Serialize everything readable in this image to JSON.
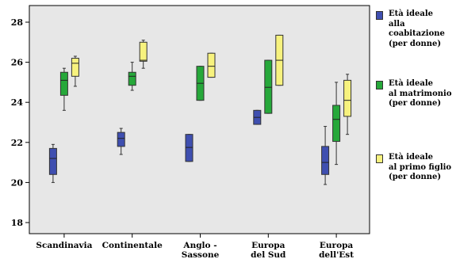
{
  "chart_data": {
    "type": "box",
    "y_ticks": [
      18,
      20,
      22,
      24,
      26,
      28
    ],
    "ylim": [
      17.2,
      28.8
    ],
    "categories": [
      "Scandinavia",
      "Continentale",
      "Anglo -\nSassone",
      "Europa\ndel Sud",
      "Europa\ndell'Est"
    ],
    "grid": false,
    "legend_position": "right",
    "series": [
      {
        "name": "Età ideale\nalla coabitazione\n(per donne)",
        "color": "#3f4fb0",
        "boxes": [
          {
            "min": 20.0,
            "q1": 20.4,
            "median": 21.2,
            "q3": 21.7,
            "max": 21.9
          },
          {
            "min": 21.4,
            "q1": 21.8,
            "median": 22.2,
            "q3": 22.5,
            "max": 22.7
          },
          {
            "min": 21.05,
            "q1": 21.05,
            "median": 21.75,
            "q3": 22.4,
            "max": 22.4
          },
          {
            "min": 22.9,
            "q1": 22.9,
            "median": 23.25,
            "q3": 23.6,
            "max": 23.6
          },
          {
            "min": 19.9,
            "q1": 20.4,
            "median": 21.0,
            "q3": 21.8,
            "max": 22.8
          }
        ]
      },
      {
        "name": "Età ideale\nal matrimonio\n(per donne)",
        "color": "#26a83a",
        "boxes": [
          {
            "min": 23.6,
            "q1": 24.35,
            "median": 25.1,
            "q3": 25.5,
            "max": 25.7
          },
          {
            "min": 24.6,
            "q1": 24.85,
            "median": 25.3,
            "q3": 25.5,
            "max": 26.0
          },
          {
            "min": 24.1,
            "q1": 24.1,
            "median": 24.95,
            "q3": 25.8,
            "max": 25.8
          },
          {
            "min": 23.45,
            "q1": 23.45,
            "median": 24.75,
            "q3": 26.1,
            "max": 26.1
          },
          {
            "min": 20.9,
            "q1": 22.05,
            "median": 23.15,
            "q3": 23.85,
            "max": 25.0
          }
        ]
      },
      {
        "name": "Età ideale\nal primo figlio\n(per donne)",
        "color": "#f7f27e",
        "boxes": [
          {
            "min": 24.8,
            "q1": 25.3,
            "median": 25.95,
            "q3": 26.2,
            "max": 26.3
          },
          {
            "min": 25.7,
            "q1": 26.05,
            "median": 26.1,
            "q3": 27.0,
            "max": 27.1
          },
          {
            "min": 25.25,
            "q1": 25.25,
            "median": 25.8,
            "q3": 26.45,
            "max": 26.45
          },
          {
            "min": 24.85,
            "q1": 24.85,
            "median": 26.1,
            "q3": 27.35,
            "max": 27.35
          },
          {
            "min": 22.4,
            "q1": 23.3,
            "median": 24.1,
            "q3": 25.1,
            "max": 25.4
          }
        ]
      }
    ]
  }
}
